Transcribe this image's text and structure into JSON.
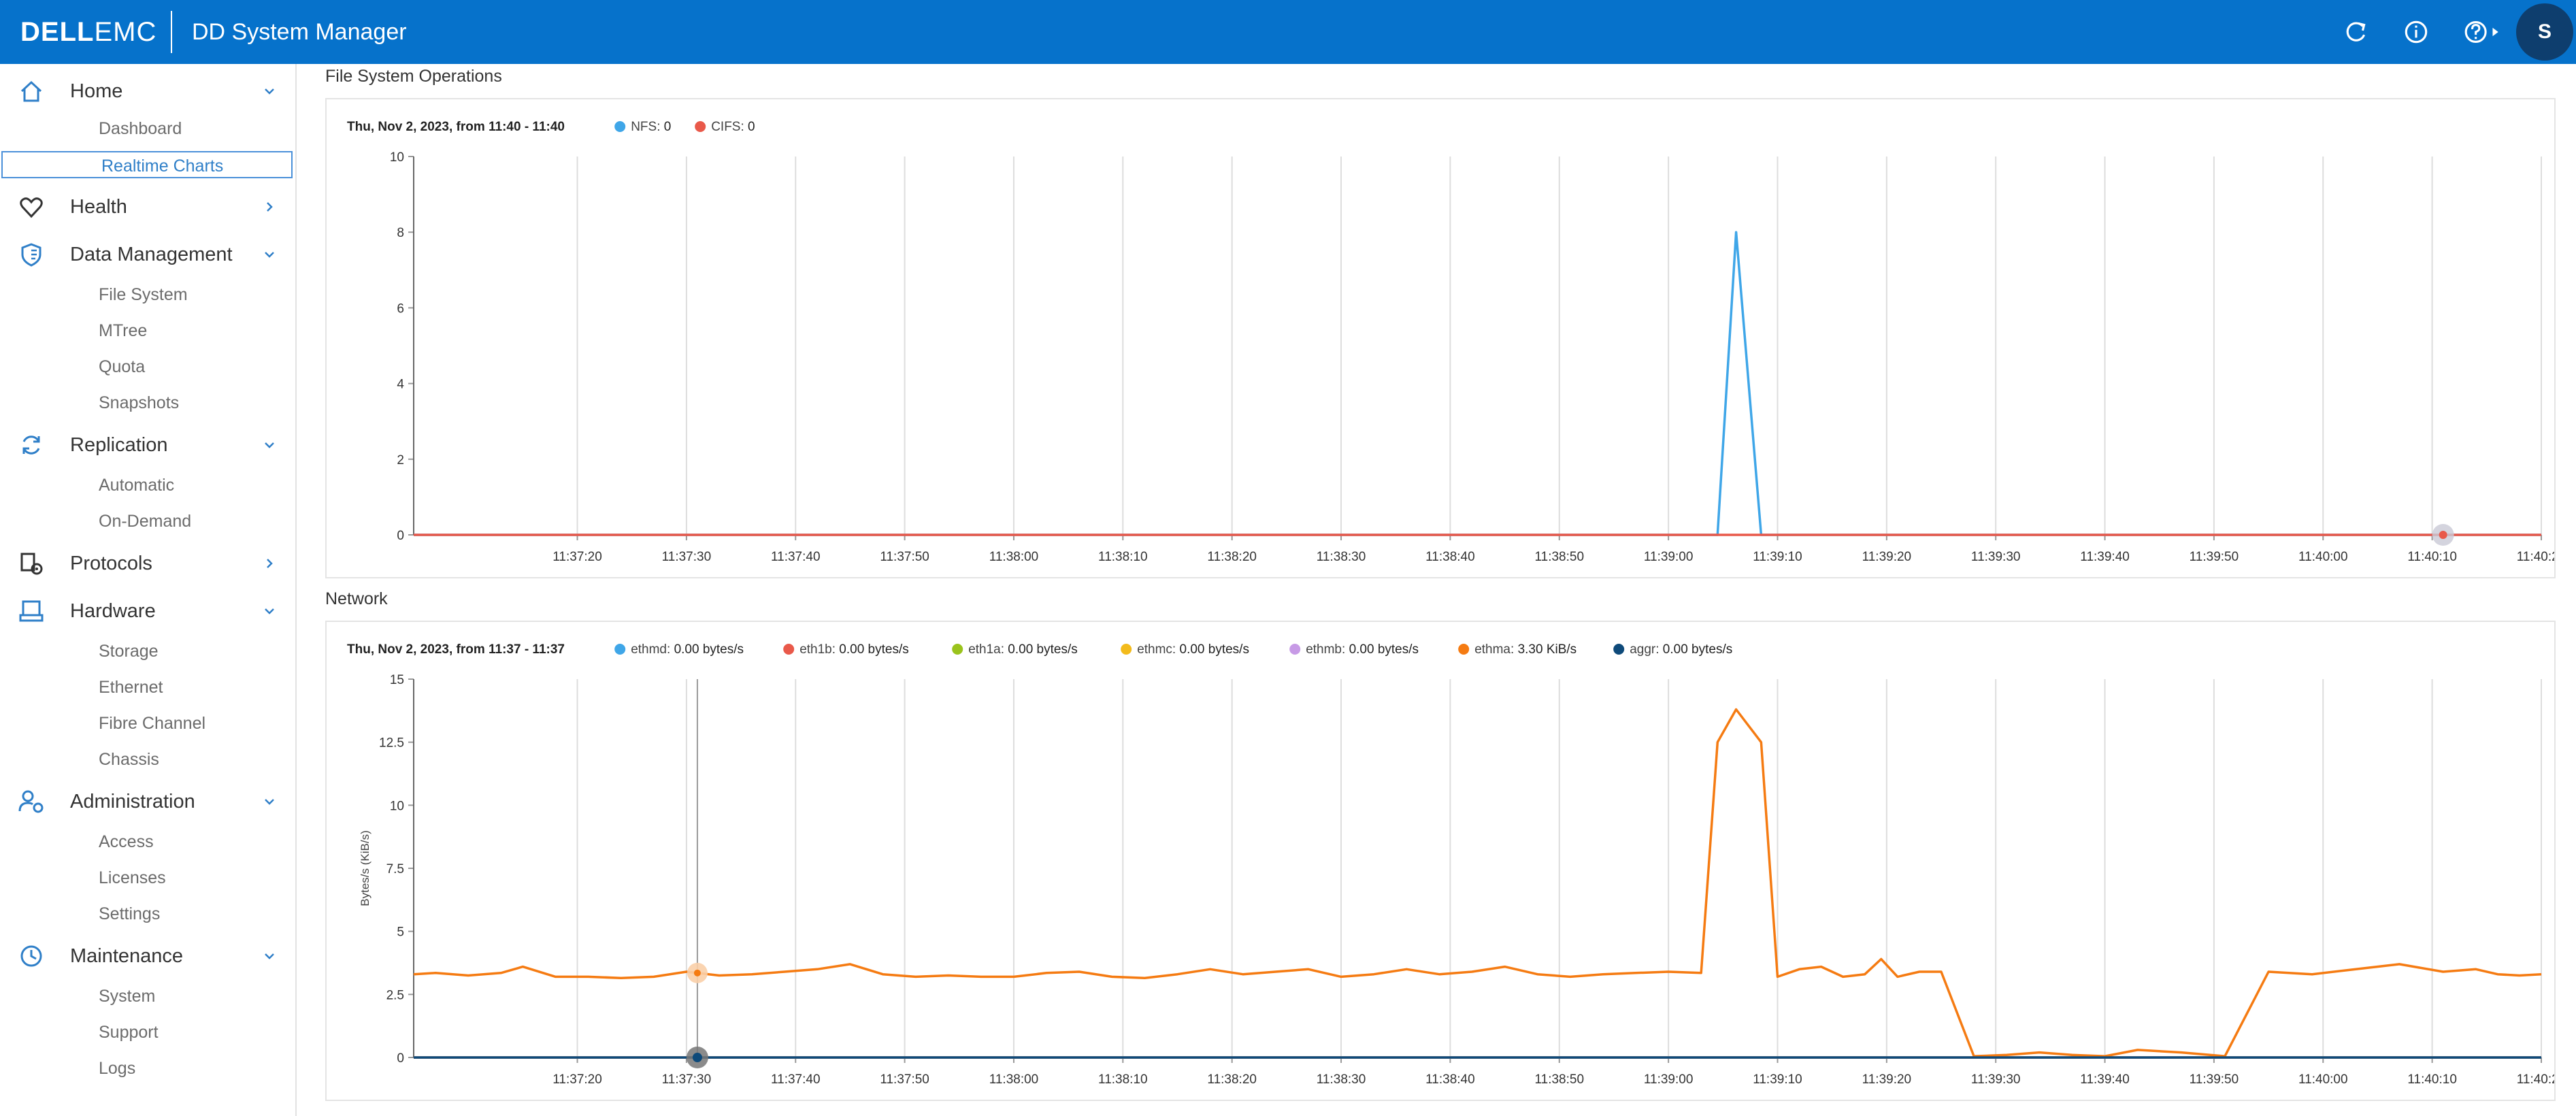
{
  "header": {
    "brand_bold": "DELL",
    "brand_light": "EMC",
    "app_title": "DD System Manager",
    "user_initial": "S",
    "icons": [
      "refresh-icon",
      "info-icon",
      "help-icon"
    ]
  },
  "sidebar": {
    "sections": [
      {
        "key": "home",
        "label": "Home",
        "icon": "home-icon",
        "expanded": true,
        "items": [
          "Dashboard",
          "Realtime Charts"
        ],
        "active": "Realtime Charts"
      },
      {
        "key": "health",
        "label": "Health",
        "icon": "heart-icon",
        "expanded": false,
        "items": []
      },
      {
        "key": "data",
        "label": "Data Management",
        "icon": "shield-icon",
        "expanded": true,
        "items": [
          "File System",
          "MTree",
          "Quota",
          "Snapshots"
        ]
      },
      {
        "key": "replication",
        "label": "Replication",
        "icon": "sync-icon",
        "expanded": true,
        "items": [
          "Automatic",
          "On-Demand"
        ]
      },
      {
        "key": "protocols",
        "label": "Protocols",
        "icon": "protocols-icon",
        "expanded": false,
        "items": []
      },
      {
        "key": "hardware",
        "label": "Hardware",
        "icon": "hardware-icon",
        "expanded": true,
        "items": [
          "Storage",
          "Ethernet",
          "Fibre Channel",
          "Chassis"
        ]
      },
      {
        "key": "admin",
        "label": "Administration",
        "icon": "admin-icon",
        "expanded": true,
        "items": [
          "Access",
          "Licenses",
          "Settings"
        ]
      },
      {
        "key": "maint",
        "label": "Maintenance",
        "icon": "clock-icon",
        "expanded": true,
        "items": [
          "System",
          "Support",
          "Logs"
        ]
      }
    ]
  },
  "colors": {
    "header": "#0672cb",
    "nfs": "#3fa6e8",
    "cifs": "#e9594a",
    "ethmd": "#3fa6e8",
    "eth1b": "#e9594a",
    "eth1a": "#9ac31c",
    "ethmc": "#f3bb1c",
    "ethmb": "#c79ae6",
    "ethma": "#f57b12",
    "aggr": "#0e4a7a"
  },
  "chart_data": [
    {
      "type": "line",
      "title": "File System Operations",
      "subtitle": "Thu, Nov 2, 2023, from 11:40 - 11:40",
      "ylabel": "",
      "xlabel": "",
      "ylim": [
        0,
        10
      ],
      "yticks": [
        "0",
        "2",
        "4",
        "6",
        "8",
        "10"
      ],
      "xlim": [
        0,
        195
      ],
      "xticks": [
        "11:37:20",
        "11:37:30",
        "11:37:40",
        "11:37:50",
        "11:38:00",
        "11:38:10",
        "11:38:20",
        "11:38:30",
        "11:38:40",
        "11:38:50",
        "11:39:00",
        "11:39:10",
        "11:39:20",
        "11:39:30",
        "11:39:40",
        "11:39:50",
        "11:40:00",
        "11:40:10",
        "11:40:20"
      ],
      "grid": true,
      "legend_position": "top-left",
      "series": [
        {
          "name": "NFS",
          "value_label": "0",
          "color_key": "nfs",
          "x": [
            0,
            119.5,
            121.2,
            123.5,
            195
          ],
          "y": [
            0,
            0,
            8,
            0,
            0
          ]
        },
        {
          "name": "CIFS",
          "value_label": "0",
          "color_key": "cifs",
          "x": [
            0,
            195
          ],
          "y": [
            0,
            0
          ]
        }
      ],
      "marker": {
        "series": "CIFS",
        "x": 186,
        "y": 0
      }
    },
    {
      "type": "line",
      "title": "Network",
      "subtitle": "Thu, Nov 2, 2023, from 11:37 - 11:37",
      "ylabel": "Bytes/s (KiB/s)",
      "xlabel": "",
      "ylim": [
        0,
        15
      ],
      "yticks": [
        "0",
        "2.5",
        "5",
        "7.5",
        "10",
        "12.5",
        "15"
      ],
      "xlim": [
        0,
        195
      ],
      "xticks": [
        "11:37:20",
        "11:37:30",
        "11:37:40",
        "11:37:50",
        "11:38:00",
        "11:38:10",
        "11:38:20",
        "11:38:30",
        "11:38:40",
        "11:38:50",
        "11:39:00",
        "11:39:10",
        "11:39:20",
        "11:39:30",
        "11:39:40",
        "11:39:50",
        "11:40:00",
        "11:40:10",
        "11:40:20"
      ],
      "grid": true,
      "legend_position": "top-left",
      "series": [
        {
          "name": "ethmd",
          "value_label": "0.00 bytes/s",
          "color_key": "ethmd",
          "x": [
            0,
            195
          ],
          "y": [
            0,
            0
          ]
        },
        {
          "name": "eth1b",
          "value_label": "0.00 bytes/s",
          "color_key": "eth1b",
          "x": [
            0,
            195
          ],
          "y": [
            0,
            0
          ]
        },
        {
          "name": "eth1a",
          "value_label": "0.00 bytes/s",
          "color_key": "eth1a",
          "x": [
            0,
            195
          ],
          "y": [
            0,
            0
          ]
        },
        {
          "name": "ethmc",
          "value_label": "0.00 bytes/s",
          "color_key": "ethmc",
          "x": [
            0,
            195
          ],
          "y": [
            0,
            0
          ]
        },
        {
          "name": "ethmb",
          "value_label": "0.00 bytes/s",
          "color_key": "ethmb",
          "x": [
            0,
            195
          ],
          "y": [
            0,
            0
          ]
        },
        {
          "name": "ethma",
          "value_label": "3.30 KiB/s",
          "color_key": "ethma",
          "x": [
            0,
            2,
            5,
            8,
            10,
            13,
            16,
            19,
            22,
            25,
            28,
            31,
            34,
            37,
            40,
            43,
            46,
            49,
            52,
            55,
            58,
            61,
            64,
            67,
            70,
            73,
            76,
            79,
            82,
            85,
            88,
            91,
            94,
            97,
            100,
            103,
            106,
            109,
            112,
            115,
            118,
            119.5,
            121.2,
            123.5,
            125,
            127,
            129,
            131,
            133,
            134.5,
            136,
            138,
            140,
            143,
            146,
            149,
            152,
            155,
            158,
            162,
            166,
            170,
            174,
            178,
            182,
            186,
            189,
            191,
            193,
            195
          ],
          "y": [
            3.3,
            3.35,
            3.25,
            3.35,
            3.6,
            3.2,
            3.2,
            3.15,
            3.2,
            3.4,
            3.25,
            3.3,
            3.4,
            3.5,
            3.7,
            3.3,
            3.2,
            3.25,
            3.2,
            3.2,
            3.35,
            3.4,
            3.2,
            3.15,
            3.3,
            3.5,
            3.3,
            3.4,
            3.5,
            3.2,
            3.3,
            3.5,
            3.3,
            3.4,
            3.6,
            3.3,
            3.2,
            3.3,
            3.35,
            3.4,
            3.35,
            12.5,
            13.8,
            12.5,
            3.2,
            3.5,
            3.6,
            3.2,
            3.3,
            3.9,
            3.2,
            3.4,
            3.4,
            0.05,
            0.1,
            0.2,
            0.1,
            0.05,
            0.3,
            0.2,
            0.05,
            3.4,
            3.3,
            3.5,
            3.7,
            3.4,
            3.5,
            3.3,
            3.25,
            3.3
          ]
        },
        {
          "name": "aggr",
          "value_label": "0.00 bytes/s",
          "color_key": "aggr",
          "x": [
            0,
            195
          ],
          "y": [
            0,
            0
          ]
        }
      ],
      "cursor_x": 26
    }
  ]
}
